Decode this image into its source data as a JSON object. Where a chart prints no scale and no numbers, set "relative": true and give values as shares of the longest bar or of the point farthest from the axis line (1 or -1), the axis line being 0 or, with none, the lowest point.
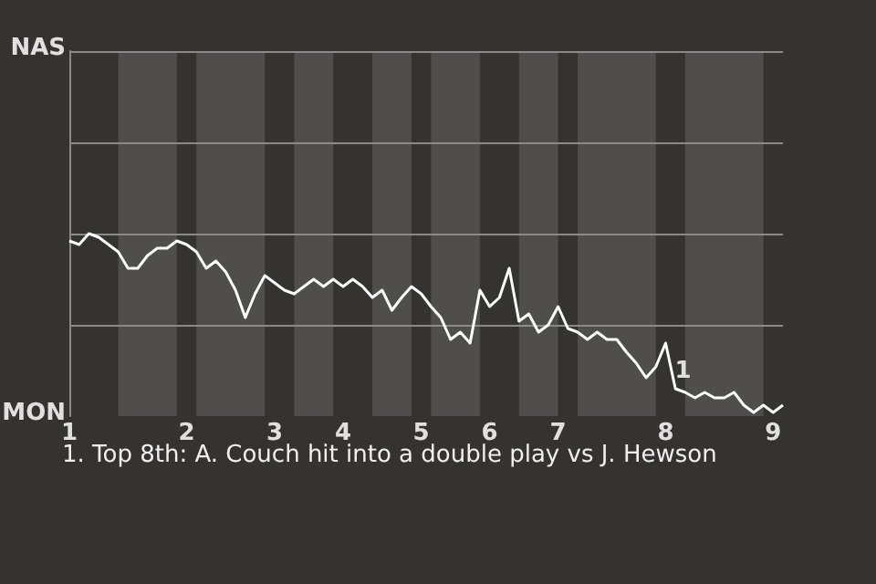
{
  "chart_data": {
    "type": "line",
    "categories": [
      "1",
      null,
      null,
      null,
      null,
      null,
      null,
      null,
      null,
      null,
      null,
      null,
      "2",
      null,
      null,
      null,
      null,
      null,
      null,
      null,
      null,
      "3",
      null,
      null,
      null,
      null,
      null,
      null,
      "4",
      null,
      null,
      null,
      null,
      null,
      null,
      null,
      "5",
      null,
      null,
      null,
      null,
      null,
      null,
      "6",
      null,
      null,
      null,
      null,
      null,
      null,
      "7",
      null,
      null,
      null,
      null,
      null,
      null,
      null,
      null,
      null,
      null,
      "8",
      null,
      null,
      null,
      null,
      null,
      null,
      null,
      null,
      null,
      null,
      "9",
      null
    ],
    "relative": true,
    "series": [
      {
        "color": "#ffffff",
        "values": [
          0.96,
          0.94,
          1,
          0.98,
          0.94,
          0.9,
          0.81,
          0.81,
          0.88,
          0.92,
          0.92,
          0.96,
          0.94,
          0.9,
          0.81,
          0.85,
          0.79,
          0.69,
          0.54,
          0.67,
          0.77,
          0.73,
          0.69,
          0.67,
          0.71,
          0.75,
          0.71,
          0.75,
          0.71,
          0.75,
          0.71,
          0.65,
          0.69,
          0.58,
          0.65,
          0.71,
          0.67,
          0.6,
          0.54,
          0.42,
          0.46,
          0.4,
          0.69,
          0.6,
          0.65,
          0.81,
          0.52,
          0.56,
          0.46,
          0.5,
          0.6,
          0.48,
          0.46,
          0.42,
          0.46,
          0.42,
          0.42,
          0.35,
          0.29,
          0.21,
          0.27,
          0.4,
          0.15,
          0.13,
          0.1,
          0.13,
          0.1,
          0.1,
          0.13,
          0.06,
          0.02,
          0.06,
          0.02,
          0.06
        ],
        "value_labels": [
          null,
          null,
          null,
          null,
          null,
          null,
          null,
          null,
          null,
          null,
          null,
          null,
          null,
          null,
          null,
          null,
          null,
          null,
          null,
          null,
          null,
          null,
          null,
          null,
          null,
          null,
          null,
          null,
          null,
          null,
          null,
          null,
          null,
          null,
          null,
          null,
          null,
          null,
          null,
          null,
          null,
          null,
          null,
          null,
          null,
          null,
          null,
          null,
          null,
          null,
          null,
          null,
          null,
          null,
          null,
          null,
          null,
          null,
          null,
          null,
          null,
          null,
          null,
          null,
          null,
          null,
          null,
          null,
          null,
          null,
          null,
          null,
          null,
          null
        ]
      }
    ],
    "ref_lines": [
      {
        "axis": "y",
        "value": 0.5,
        "color": "#8a8a8a"
      },
      {
        "axis": "y",
        "value": 1,
        "color": "#8a8a8a"
      },
      {
        "axis": "y",
        "value": 1.5,
        "color": "#8a8a8a"
      },
      {
        "axis": "y",
        "value": 2,
        "color": "#8a8a8a"
      }
    ],
    "marker": "none",
    "annotations": [
      "NAS",
      "MON",
      {
        "text": "1",
        "x": "8",
        "y": 0.15
      },
      "1. Top 8th: A. Couch hit into a double play vs J. Hewson"
    ]
  }
}
